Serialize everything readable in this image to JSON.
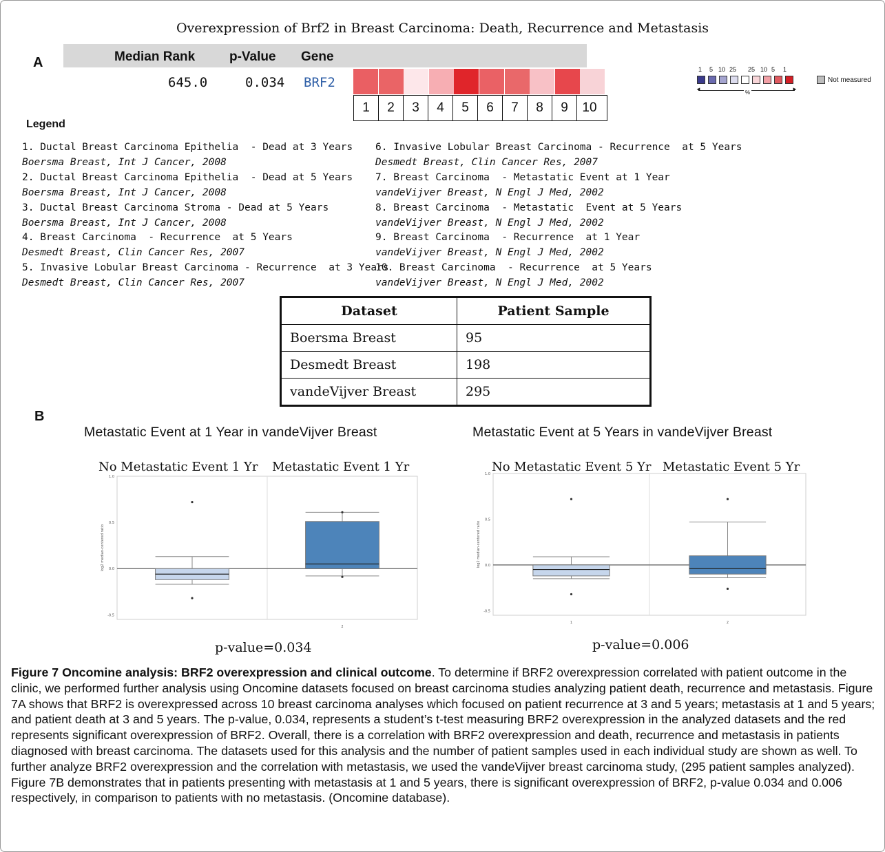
{
  "figure_title": "Overexpression of Brf2 in Breast Carcinoma:  Death, Recurrence and Metastasis",
  "panel_a": {
    "letter": "A",
    "headers": {
      "median_rank": "Median Rank",
      "p_value": "p-Value",
      "gene": "Gene"
    },
    "row": {
      "median_rank": "645.0",
      "p_value": "0.034",
      "gene": "BRF2"
    },
    "heatmap_colors": [
      "#ea5f63",
      "#ea6466",
      "#fde7ea",
      "#f7aeb3",
      "#e0252a",
      "#ea6165",
      "#e9686a",
      "#f8c1c6",
      "#e7474c",
      "#f8d3d7"
    ],
    "column_numbers": [
      "1",
      "2",
      "3",
      "4",
      "5",
      "6",
      "7",
      "8",
      "9",
      "10"
    ],
    "color_key": {
      "labels": [
        "1",
        "5",
        "10",
        "25",
        "25",
        "10",
        "5",
        "1"
      ],
      "colors": [
        "#3a3a8c",
        "#6b6bb0",
        "#a5a5d0",
        "#dcdcee",
        "#ffffff",
        "#f8d5d8",
        "#f2a0a6",
        "#e05a60",
        "#d41f26"
      ],
      "not_measured": "Not measured",
      "percent_symbol": "%"
    },
    "legend_title": "Legend",
    "legend_left": [
      "1. Ductal Breast Carcinoma Epithelia  - Dead at 3 Years",
      "Boersma Breast, Int J Cancer, 2008",
      "2. Ductal Breast Carcinoma Epithelia  - Dead at 5 Years",
      "Boersma Breast, Int J Cancer, 2008",
      "3. Ductal Breast Carcinoma Stroma - Dead at 5 Years",
      "Boersma Breast, Int J Cancer, 2008",
      "4. Breast Carcinoma  - Recurrence  at 5 Years",
      "Desmedt Breast, Clin Cancer Res, 2007",
      "5. Invasive Lobular Breast Carcinoma - Recurrence  at 3 Years",
      "Desmedt Breast, Clin Cancer Res, 2007"
    ],
    "legend_right": [
      "6. Invasive Lobular Breast Carcinoma - Recurrence  at 5 Years",
      "Desmedt Breast, Clin Cancer Res, 2007",
      "7. Breast Carcinoma  - Metastatic Event at 1 Year",
      "vandeVijver Breast, N Engl J Med, 2002",
      "8. Breast Carcinoma  - Metastatic  Event at 5 Years",
      "vandeVijver Breast, N Engl J Med, 2002",
      "9. Breast Carcinoma  - Recurrence  at 1 Year",
      "vandeVijver Breast, N Engl J Med, 2002",
      "10. Breast Carcinoma  - Recurrence  at 5 Years",
      "vandeVijver Breast, N Engl J Med, 2002"
    ]
  },
  "dataset_table": {
    "headers": [
      "Dataset",
      "Patient Sample"
    ],
    "rows": [
      [
        "Boersma Breast",
        "95"
      ],
      [
        "Desmedt Breast",
        "198"
      ],
      [
        "vandeVijver Breast",
        "295"
      ]
    ]
  },
  "panel_b": {
    "letter": "B",
    "ylabel": "log2 median-centered ratio"
  },
  "chart_data": [
    {
      "type": "box",
      "title": "Metastatic Event at 1 Year in vandeVijver Breast",
      "categories": [
        "No Metastatic Event 1 Yr",
        "Metastatic Event 1 Yr"
      ],
      "xtick_labels": [
        "",
        "2"
      ],
      "ylabel": "log2 median-centered ratio",
      "ylim": [
        -0.55,
        1.0
      ],
      "yticks": [
        "-0.5",
        "0.0",
        "0.5",
        "1.0"
      ],
      "boxes": [
        {
          "whisker_low": -0.17,
          "q1": -0.12,
          "median": -0.06,
          "q3": 0.0,
          "whisker_high": 0.13,
          "outliers": [
            -0.32,
            0.72
          ],
          "fill": "#c6d6ec"
        },
        {
          "whisker_low": -0.08,
          "q1": 0.0,
          "median": 0.05,
          "q3": 0.51,
          "whisker_high": 0.61,
          "outliers": [
            -0.09,
            0.61
          ],
          "fill": "#4d84ba"
        }
      ],
      "p_value_label": "p-value=0.034"
    },
    {
      "type": "box",
      "title": "Metastatic Event at 5 Years in vandeVijver Breast",
      "categories": [
        "No Metastatic Event 5 Yr",
        "Metastatic Event 5 Yr"
      ],
      "xtick_labels": [
        "1",
        "2"
      ],
      "ylabel": "log2 median-centered ratio",
      "ylim": [
        -0.55,
        1.0
      ],
      "yticks": [
        "-0.5",
        "0.0",
        "0.5",
        "1.0"
      ],
      "boxes": [
        {
          "whisker_low": -0.15,
          "q1": -0.12,
          "median": -0.05,
          "q3": 0.0,
          "whisker_high": 0.09,
          "outliers": [
            -0.32,
            0.72
          ],
          "fill": "#c6d6ec"
        },
        {
          "whisker_low": -0.14,
          "q1": -0.1,
          "median": -0.04,
          "q3": 0.1,
          "whisker_high": 0.47,
          "outliers": [
            -0.26,
            0.72
          ],
          "fill": "#4d84ba"
        }
      ],
      "p_value_label": "p-value=0.006"
    }
  ],
  "caption": {
    "bold": "Figure 7 Oncomine analysis: BRF2 overexpression and clinical outcome",
    "text": ". To determine if BRF2 overexpression correlated with patient outcome in the clinic, we performed further analysis using Oncomine datasets focused on breast carcinoma studies analyzing patient death, recurrence and metastasis. Figure 7A shows that BRF2 is overexpressed across 10 breast carcinoma analyses which focused on patient recurrence at 3 and 5 years; metastasis at 1 and 5 years; and patient death at 3 and 5 years. The p-value, 0.034, represents a student’s t-test measuring BRF2 overexpression in the analyzed datasets and the red represents significant overexpression of BRF2. Overall, there is a correlation with BRF2 overexpression and death, recurrence and metastasis in patients diagnosed with breast carcinoma. The datasets used for this analysis and the number of patient samples used in each individual study are shown as well. To further analyze BRF2 overexpression and the correlation with metastasis, we used the vandeVijver breast carcinoma study, (295 patient samples analyzed). Figure 7B demonstrates that in patients presenting with metastasis at 1 and 5 years, there is significant overexpression of BRF2, p-value 0.034 and 0.006 respectively, in comparison to patients with no metastasis. (Oncomine database)."
  }
}
